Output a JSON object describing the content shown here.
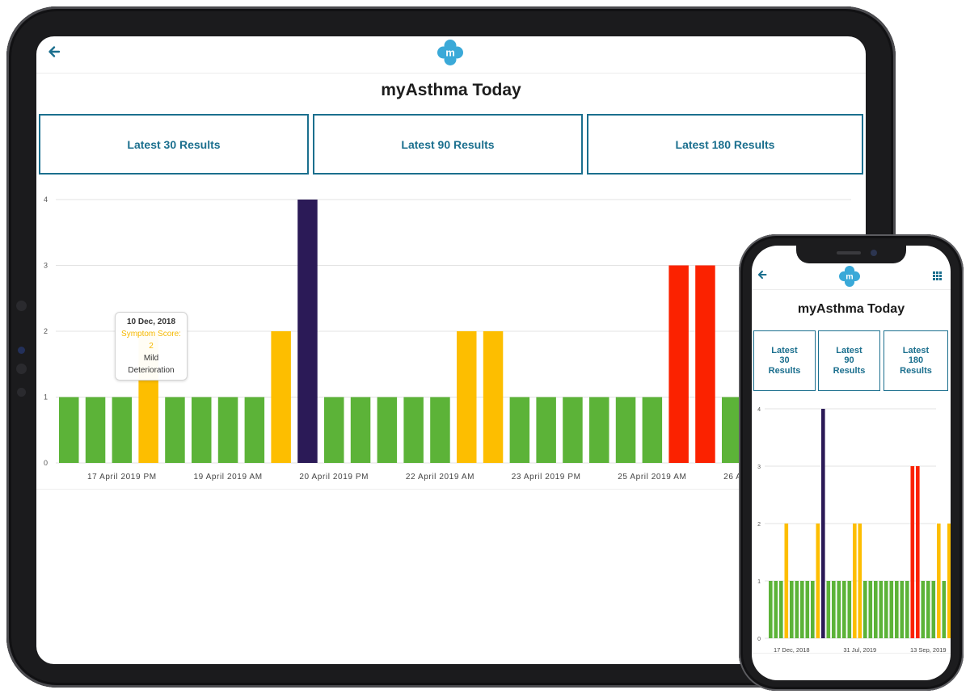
{
  "app": {
    "title": "myAsthma Today",
    "logo_letter": "m",
    "back_icon": "arrow-left-icon",
    "menu_icon": "grid-icon"
  },
  "tabs": [
    {
      "label": "Latest 30 Results"
    },
    {
      "label": "Latest 90 Results"
    },
    {
      "label": "Latest 180 Results"
    }
  ],
  "phone_tabs": [
    {
      "label": "Latest\n30\nResults"
    },
    {
      "label": "Latest\n90\nResults"
    },
    {
      "label": "Latest\n180\nResults"
    }
  ],
  "colors": {
    "accent": "#1b6f8e",
    "logo": "#3aa9d8",
    "green": "#5cb338",
    "yellow": "#fdbe00",
    "purple": "#2b1a57",
    "red": "#fb2200"
  },
  "tooltip": {
    "date": "10 Dec, 2018",
    "score": "Symptom Score: 2",
    "description": "Mild Deterioration"
  },
  "chart_data": [
    {
      "type": "bar",
      "ylim": [
        0,
        4
      ],
      "yticks": [
        "0",
        "1",
        "2",
        "3",
        "4"
      ],
      "values": [
        1,
        1,
        1,
        2,
        1,
        1,
        1,
        1,
        2,
        4,
        1,
        1,
        1,
        1,
        1,
        2,
        2,
        1,
        1,
        1,
        1,
        1,
        1,
        3,
        3,
        1
      ],
      "colors": [
        "green",
        "green",
        "green",
        "yellow",
        "green",
        "green",
        "green",
        "green",
        "yellow",
        "purple",
        "green",
        "green",
        "green",
        "green",
        "green",
        "yellow",
        "yellow",
        "green",
        "green",
        "green",
        "green",
        "green",
        "green",
        "red",
        "red",
        "green"
      ],
      "xtick_labels": [
        "17 April 2019 PM",
        "19 April 2019 AM",
        "20 April 2019 PM",
        "22 April 2019 AM",
        "23 April 2019 PM",
        "25 April 2019 AM",
        "26 April 2019 PM"
      ],
      "xtick_positions": [
        2.5,
        6.5,
        10.5,
        14.5,
        18.5,
        22.5,
        26.5
      ],
      "grid": true
    },
    {
      "type": "bar",
      "ylim": [
        0,
        4
      ],
      "yticks": [
        "0",
        "1",
        "2",
        "3",
        "4"
      ],
      "values": [
        1,
        1,
        1,
        2,
        1,
        1,
        1,
        1,
        1,
        2,
        4,
        1,
        1,
        1,
        1,
        1,
        2,
        2,
        1,
        1,
        1,
        1,
        1,
        1,
        1,
        1,
        1,
        3,
        3,
        1,
        1,
        1,
        2,
        1,
        2
      ],
      "colors": [
        "green",
        "green",
        "green",
        "yellow",
        "green",
        "green",
        "green",
        "green",
        "green",
        "yellow",
        "purple",
        "green",
        "green",
        "green",
        "green",
        "green",
        "yellow",
        "yellow",
        "green",
        "green",
        "green",
        "green",
        "green",
        "green",
        "green",
        "green",
        "green",
        "red",
        "red",
        "green",
        "green",
        "green",
        "yellow",
        "green",
        "yellow"
      ],
      "xtick_labels": [
        "17 Dec, 2018",
        "31 Jul, 2019",
        "13 Sep, 2019"
      ],
      "xtick_positions": [
        4.5,
        17.5,
        30.5
      ],
      "grid": true
    }
  ]
}
